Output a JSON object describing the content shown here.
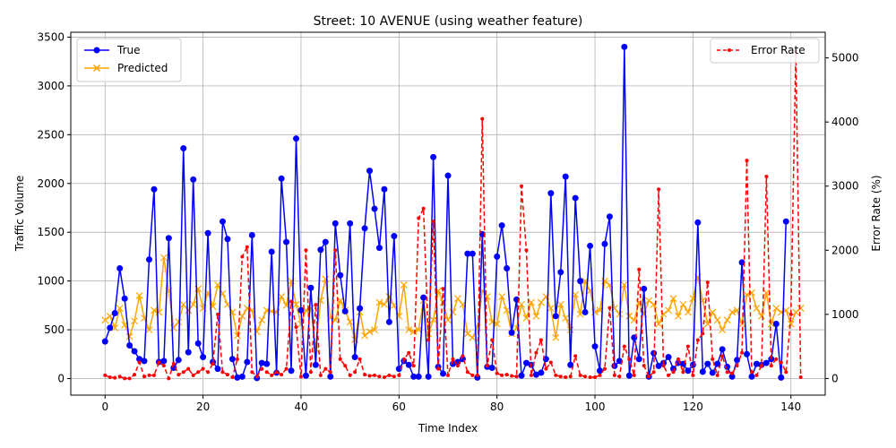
{
  "chart_data": {
    "type": "line",
    "title": "Street: 10 AVENUE (using weather feature)",
    "xlabel": "Time Index",
    "ylabel": "Traffic Volume",
    "y2label": "Error Rate (%)",
    "xlim": [
      -7,
      147
    ],
    "ylim": [
      -170,
      3550
    ],
    "y2lim": [
      -260,
      5400
    ],
    "xticks": [
      0,
      20,
      40,
      60,
      80,
      100,
      120,
      140
    ],
    "yticks": [
      0,
      500,
      1000,
      1500,
      2000,
      2500,
      3000,
      3500
    ],
    "y2ticks": [
      0,
      1000,
      2000,
      3000,
      4000,
      5000
    ],
    "grid": true,
    "legend_left_position": "upper-left",
    "legend_right_position": "upper-right",
    "series": [
      {
        "name": "True",
        "axis": "left",
        "color": "#0000ff",
        "marker": "circle",
        "line_style": "solid",
        "values": [
          380,
          520,
          670,
          1130,
          820,
          340,
          280,
          200,
          180,
          1220,
          1940,
          170,
          180,
          1440,
          110,
          190,
          2360,
          270,
          2040,
          360,
          220,
          1490,
          170,
          100,
          1610,
          1430,
          200,
          10,
          20,
          170,
          1470,
          5,
          160,
          150,
          1300,
          60,
          2050,
          1400,
          80,
          2460,
          700,
          30,
          930,
          140,
          1320,
          1400,
          20,
          1590,
          1060,
          690,
          1590,
          220,
          720,
          1540,
          2130,
          1740,
          1340,
          1940,
          580,
          1460,
          100,
          180,
          140,
          20,
          20,
          830,
          20,
          2270,
          120,
          50,
          2080,
          150,
          170,
          200,
          1280,
          1280,
          10,
          1480,
          120,
          110,
          1250,
          1570,
          1130,
          470,
          810,
          30,
          160,
          140,
          40,
          60,
          200,
          1900,
          640,
          1090,
          2070,
          140,
          1850,
          1000,
          680,
          1360,
          330,
          80,
          1380,
          1660,
          130,
          180,
          3400,
          30,
          420,
          200,
          920,
          20,
          260,
          130,
          160,
          220,
          100,
          160,
          150,
          80,
          140,
          1600,
          70,
          150,
          60,
          150,
          300,
          120,
          20,
          190,
          1190,
          250,
          20,
          150,
          140,
          160,
          200,
          560,
          10,
          1610
        ]
      },
      {
        "name": "Predicted",
        "axis": "left",
        "color": "#ffa500",
        "marker": "x",
        "line_style": "solid",
        "values": [
          600,
          640,
          520,
          720,
          550,
          430,
          590,
          850,
          620,
          500,
          700,
          680,
          1240,
          900,
          520,
          580,
          760,
          700,
          760,
          920,
          720,
          880,
          740,
          960,
          870,
          760,
          680,
          440,
          640,
          720,
          700,
          480,
          600,
          700,
          690,
          680,
          840,
          750,
          1000,
          760,
          560,
          700,
          720,
          300,
          800,
          1020,
          620,
          600,
          800,
          700,
          580,
          400,
          680,
          440,
          480,
          500,
          780,
          760,
          840,
          750,
          640,
          960,
          500,
          480,
          500,
          800,
          460,
          600,
          900,
          780,
          600,
          680,
          820,
          760,
          460,
          420,
          520,
          900,
          840,
          580,
          560,
          840,
          700,
          460,
          520,
          760,
          620,
          780,
          640,
          780,
          840,
          720,
          420,
          760,
          620,
          500,
          860,
          660,
          1000,
          900,
          680,
          700,
          1000,
          960,
          720,
          660,
          960,
          640,
          600,
          780,
          660,
          800,
          760,
          560,
          660,
          700,
          820,
          640,
          760,
          680,
          820,
          1040,
          800,
          560,
          680,
          600,
          500,
          600,
          680,
          700,
          560,
          860,
          880,
          720,
          640,
          880,
          560,
          720,
          680,
          700,
          560,
          680,
          720
        ]
      },
      {
        "name": "Error Rate",
        "axis": "right",
        "color": "#ff0000",
        "marker": "dot",
        "line_style": "dashed",
        "values": [
          50,
          20,
          10,
          30,
          0,
          0,
          60,
          250,
          30,
          50,
          50,
          250,
          200,
          0,
          230,
          60,
          100,
          150,
          50,
          100,
          150,
          100,
          230,
          1000,
          100,
          60,
          20,
          300,
          1900,
          2050,
          100,
          30,
          150,
          100,
          50,
          100,
          60,
          150,
          1200,
          800,
          30,
          2000,
          100,
          1150,
          50,
          150,
          100,
          2000,
          300,
          200,
          50,
          100,
          300,
          60,
          40,
          50,
          30,
          20,
          50,
          30,
          50,
          300,
          400,
          200,
          2500,
          2650,
          600,
          2450,
          150,
          1400,
          50,
          300,
          200,
          350,
          100,
          50,
          50,
          4050,
          200,
          600,
          80,
          50,
          60,
          40,
          30,
          3000,
          2000,
          50,
          400,
          600,
          150,
          250,
          50,
          30,
          20,
          30,
          350,
          50,
          30,
          20,
          20,
          50,
          150,
          1100,
          50,
          30,
          500,
          300,
          50,
          1700,
          200,
          30,
          100,
          2950,
          200,
          50,
          100,
          300,
          100,
          500,
          50,
          600,
          700,
          1500,
          300,
          50,
          350,
          100,
          80,
          200,
          400,
          3400,
          100,
          50,
          200,
          3150,
          200,
          300,
          250,
          100,
          1000,
          5100,
          20
        ]
      }
    ]
  }
}
